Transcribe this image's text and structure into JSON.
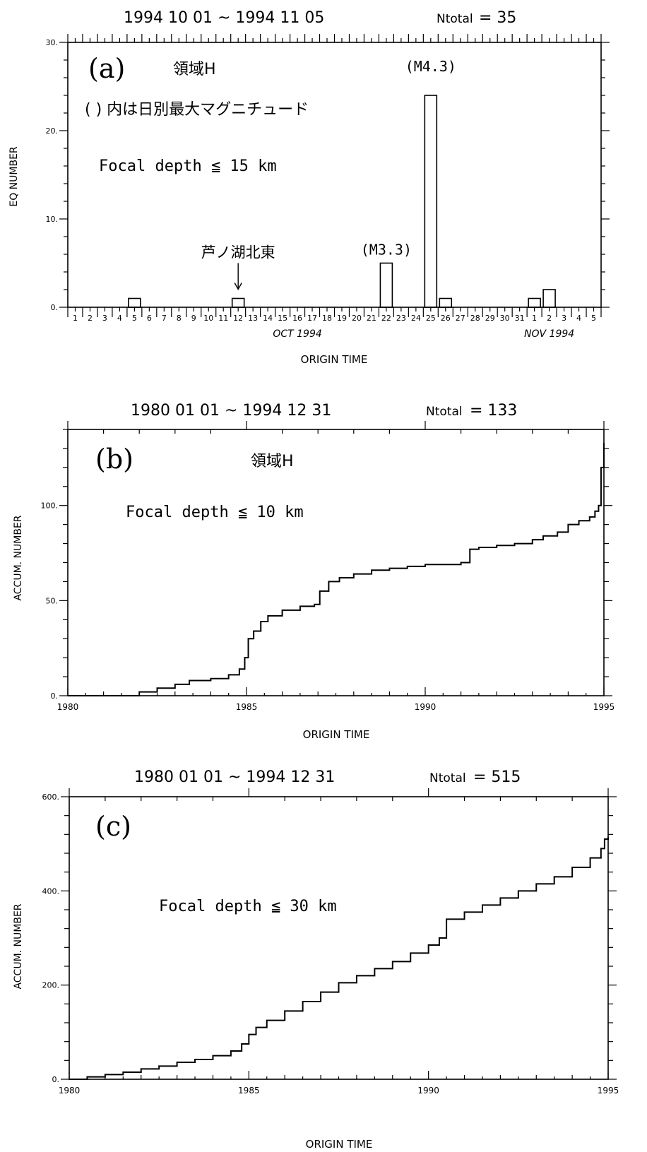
{
  "chart_data": [
    {
      "panel_label": "(a)",
      "type": "bar",
      "period": "1994 10 01 ~ 1994 11 05",
      "ntotal_label": "Ntotal",
      "ntotal_value": "= 35",
      "region": "領域H",
      "note": "( ) 内は日別最大マグニチュード",
      "depth": "Focal depth ≦ 15 km",
      "xlabel": "ORIGIN TIME",
      "ylabel": "EQ NUMBER",
      "ylim": [
        0,
        30
      ],
      "yticks": [
        "0.",
        "10.",
        "20.",
        "30."
      ],
      "day_labels": [
        "1",
        "2",
        "3",
        "4",
        "5",
        "6",
        "7",
        "8",
        "9",
        "10",
        "11",
        "12",
        "13",
        "14",
        "15",
        "16",
        "17",
        "18",
        "19",
        "20",
        "21",
        "22",
        "23",
        "24",
        "25",
        "26",
        "27",
        "28",
        "29",
        "30",
        "31",
        "1",
        "2",
        "3",
        "4",
        "5"
      ],
      "month_labels": [
        {
          "text": "OCT 1994",
          "day_index": 16
        },
        {
          "text": "NOV 1994",
          "day_index": 33
        }
      ],
      "bars": [
        {
          "day_index": 5,
          "value": 1
        },
        {
          "day_index": 12,
          "value": 1
        },
        {
          "day_index": 22,
          "value": 5
        },
        {
          "day_index": 25,
          "value": 24
        },
        {
          "day_index": 26,
          "value": 1
        },
        {
          "day_index": 32,
          "value": 1
        },
        {
          "day_index": 33,
          "value": 2
        }
      ],
      "annotations": [
        {
          "text": "(M4.3)",
          "day_index": 25,
          "value": 24
        },
        {
          "text": "(M3.3)",
          "day_index": 22,
          "value": 5
        },
        {
          "text": "芦ノ湖北東",
          "day_index": 12,
          "value": 1
        }
      ]
    },
    {
      "panel_label": "(b)",
      "type": "line",
      "period": "1980 01 01 ~ 1994 12 31",
      "ntotal_label": "Ntotal",
      "ntotal_value": "= 133",
      "region": "領域H",
      "depth": "Focal depth ≦ 10 km",
      "xlabel": "ORIGIN TIME",
      "ylabel": "ACCUM. NUMBER",
      "xlim": [
        1980,
        1995
      ],
      "ylim": [
        0,
        140
      ],
      "xticks": [
        "1980",
        "1985",
        "1990",
        "1995"
      ],
      "yticks": [
        {
          "value": 0,
          "label": "0."
        },
        {
          "value": 50,
          "label": "50."
        },
        {
          "value": 100,
          "label": "100."
        }
      ],
      "x": [
        1980.0,
        1982.0,
        1982.5,
        1983.0,
        1983.4,
        1984.0,
        1984.5,
        1984.8,
        1984.95,
        1985.05,
        1985.2,
        1985.4,
        1985.6,
        1986.0,
        1986.5,
        1986.9,
        1987.05,
        1987.3,
        1987.6,
        1988.0,
        1988.5,
        1989.0,
        1989.5,
        1990.0,
        1990.5,
        1991.0,
        1991.25,
        1991.5,
        1992.0,
        1992.5,
        1993.0,
        1993.3,
        1993.7,
        1994.0,
        1994.3,
        1994.6,
        1994.75,
        1994.85,
        1994.92,
        1995.0
      ],
      "y": [
        0,
        2,
        4,
        6,
        8,
        9,
        11,
        14,
        20,
        30,
        34,
        39,
        42,
        45,
        47,
        48,
        55,
        60,
        62,
        64,
        66,
        67,
        68,
        69,
        69,
        70,
        77,
        78,
        79,
        80,
        82,
        84,
        86,
        90,
        92,
        94,
        97,
        100,
        120,
        133
      ]
    },
    {
      "panel_label": "(c)",
      "type": "line",
      "period": "1980 01 01 ~ 1994 12 31",
      "ntotal_label": "Ntotal",
      "ntotal_value": "= 515",
      "depth": "Focal depth ≦ 30 km",
      "xlabel": "ORIGIN TIME",
      "ylabel": "ACCUM. NUMBER",
      "xlim": [
        1980,
        1995
      ],
      "ylim": [
        0,
        600
      ],
      "xticks": [
        "1980",
        "1985",
        "1990",
        "1995"
      ],
      "yticks": [
        {
          "value": 0,
          "label": "0."
        },
        {
          "value": 200,
          "label": "200."
        },
        {
          "value": 400,
          "label": "400."
        },
        {
          "value": 600,
          "label": "600."
        }
      ],
      "x": [
        1980.0,
        1980.5,
        1981.0,
        1981.5,
        1982.0,
        1982.5,
        1983.0,
        1983.5,
        1984.0,
        1984.5,
        1984.8,
        1985.0,
        1985.2,
        1985.5,
        1986.0,
        1986.5,
        1987.0,
        1987.5,
        1988.0,
        1988.5,
        1989.0,
        1989.5,
        1990.0,
        1990.3,
        1990.5,
        1991.0,
        1991.5,
        1992.0,
        1992.5,
        1993.0,
        1993.5,
        1994.0,
        1994.5,
        1994.8,
        1994.9,
        1995.0
      ],
      "y": [
        0,
        5,
        10,
        15,
        22,
        28,
        36,
        42,
        50,
        60,
        75,
        95,
        110,
        125,
        145,
        165,
        185,
        205,
        220,
        235,
        250,
        268,
        285,
        300,
        340,
        355,
        370,
        385,
        400,
        415,
        430,
        450,
        470,
        490,
        510,
        515
      ]
    }
  ]
}
